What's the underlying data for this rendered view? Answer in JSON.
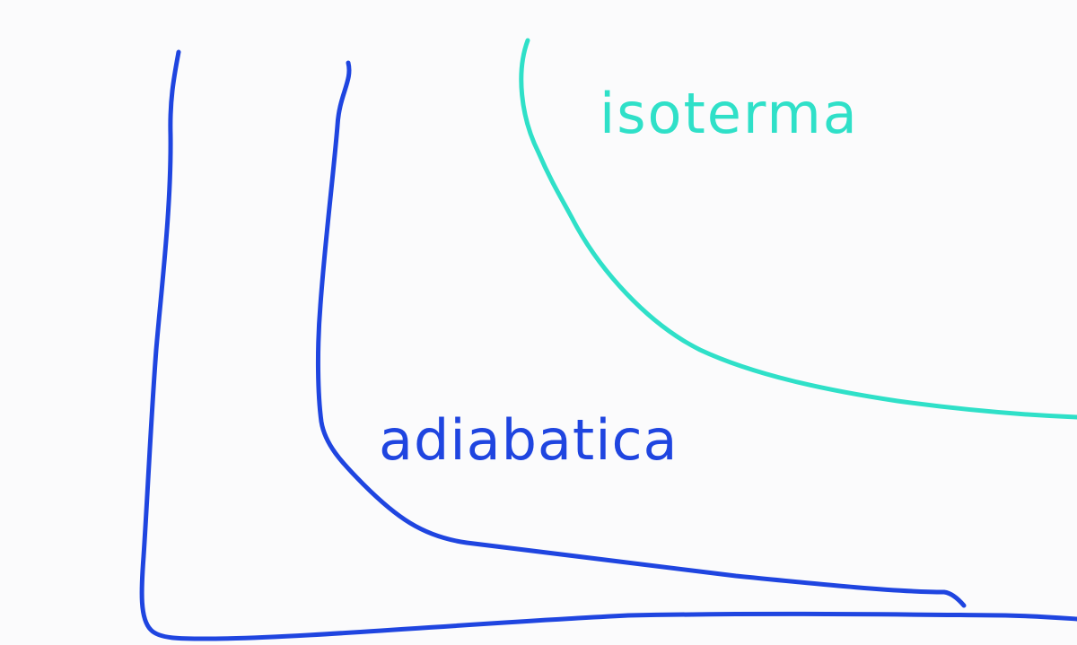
{
  "diagram": {
    "curves": [
      {
        "id": "axes",
        "color": "#1f45e0"
      },
      {
        "id": "adiabatica",
        "label": "adiabatica",
        "color": "#1f45e0"
      },
      {
        "id": "isoterma",
        "label": "isoterma",
        "color": "#2fe0c8"
      }
    ]
  }
}
